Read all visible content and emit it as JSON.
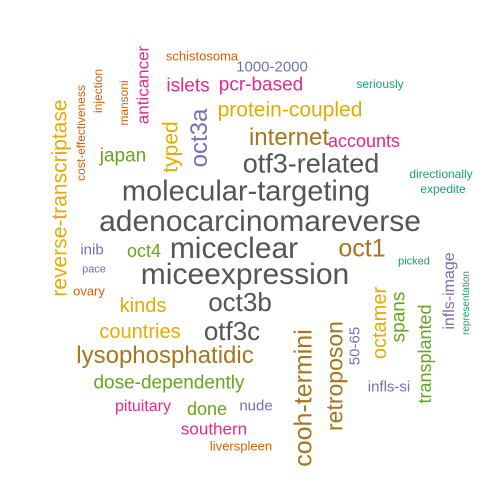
{
  "colors": {
    "gray": "#555555",
    "orange": "#D95F02",
    "brown": "#A6761D",
    "gold": "#E6AB02",
    "green": "#66A61E",
    "magenta": "#E7298A",
    "purple": "#7570B3",
    "teal": "#1B9E77"
  },
  "words": [
    {
      "text": "adenocarcinomareverse",
      "color": "gray"
    },
    {
      "text": "molecular-targeting",
      "color": "gray"
    },
    {
      "text": "miceexpression",
      "color": "gray"
    },
    {
      "text": "miceclear",
      "color": "gray"
    },
    {
      "text": "otf3-related",
      "color": "gray"
    },
    {
      "text": "oct3b",
      "color": "gray"
    },
    {
      "text": "otf3c",
      "color": "gray"
    },
    {
      "text": "internet",
      "color": "brown"
    },
    {
      "text": "oct1",
      "color": "brown"
    },
    {
      "text": "oct3a",
      "color": "purple"
    },
    {
      "text": "lysophosphatidic",
      "color": "brown"
    },
    {
      "text": "cooh-termini",
      "color": "brown"
    },
    {
      "text": "retroposon",
      "color": "brown"
    },
    {
      "text": "reverse-transcriptase",
      "color": "gold"
    },
    {
      "text": "protein-coupled",
      "color": "gold"
    },
    {
      "text": "typed",
      "color": "gold"
    },
    {
      "text": "countries",
      "color": "gold"
    },
    {
      "text": "kinds",
      "color": "gold"
    },
    {
      "text": "octamer",
      "color": "gold"
    },
    {
      "text": "pcr-based",
      "color": "magenta"
    },
    {
      "text": "islets",
      "color": "magenta"
    },
    {
      "text": "accounts",
      "color": "magenta"
    },
    {
      "text": "anticancer",
      "color": "magenta"
    },
    {
      "text": "pituitary",
      "color": "magenta"
    },
    {
      "text": "southern",
      "color": "magenta"
    },
    {
      "text": "japan",
      "color": "green"
    },
    {
      "text": "oct4",
      "color": "green"
    },
    {
      "text": "dose-dependently",
      "color": "green"
    },
    {
      "text": "done",
      "color": "green"
    },
    {
      "text": "spans",
      "color": "green"
    },
    {
      "text": "transplanted",
      "color": "green"
    },
    {
      "text": "1000-2000",
      "color": "purple"
    },
    {
      "text": "inib",
      "color": "purple"
    },
    {
      "text": "nude",
      "color": "purple"
    },
    {
      "text": "50-65",
      "color": "purple"
    },
    {
      "text": "infls-si",
      "color": "purple"
    },
    {
      "text": "infls-image",
      "color": "purple"
    },
    {
      "text": "schistosoma",
      "color": "orange"
    },
    {
      "text": "injection",
      "color": "orange"
    },
    {
      "text": "cost-effectiveness",
      "color": "orange"
    },
    {
      "text": "mansoni",
      "color": "orange"
    },
    {
      "text": "ovary",
      "color": "orange"
    },
    {
      "text": "liverspleen",
      "color": "orange"
    },
    {
      "text": "seriously",
      "color": "teal"
    },
    {
      "text": "directionally",
      "color": "teal"
    },
    {
      "text": "expedite",
      "color": "teal"
    },
    {
      "text": "pace",
      "color": "purple"
    },
    {
      "text": "picked",
      "color": "teal"
    },
    {
      "text": "representation",
      "color": "teal"
    }
  ]
}
